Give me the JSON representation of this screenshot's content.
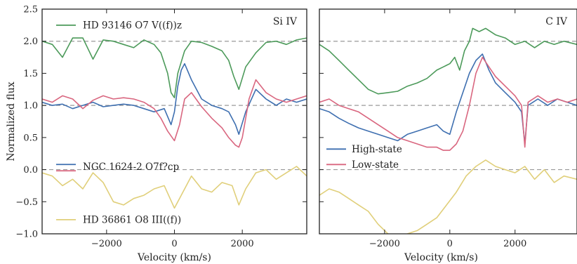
{
  "chart_data": [
    {
      "type": "line",
      "title": "Si IV",
      "xlabel": "Velocity (km/s)",
      "ylabel": "Normalized flux",
      "xlim": [
        -3900,
        3900
      ],
      "ylim": [
        -1.0,
        2.5
      ],
      "xticks": [
        -2000,
        0,
        2000
      ],
      "xtick_labels": [
        "−2000",
        "0",
        "2000"
      ],
      "yticks": [
        -1.0,
        -0.5,
        0.0,
        0.5,
        1.0,
        1.5,
        2.0,
        2.5
      ],
      "ytick_labels": [
        "−1.0",
        "−0.5",
        "0.0",
        "0.5",
        "1.0",
        "1.5",
        "2.0",
        "2.5"
      ],
      "reference_lines": [
        0.0,
        1.0,
        2.0
      ],
      "series": [
        {
          "name": "HD 93146 O7 V((f))z",
          "color": "#4c9a5a",
          "x": [
            -3900,
            -3600,
            -3300,
            -3000,
            -2700,
            -2400,
            -2100,
            -1800,
            -1500,
            -1200,
            -900,
            -600,
            -400,
            -200,
            -100,
            0,
            100,
            300,
            500,
            800,
            1100,
            1400,
            1600,
            1750,
            1900,
            2100,
            2400,
            2700,
            3000,
            3300,
            3600,
            3900
          ],
          "y": [
            2.0,
            1.95,
            1.75,
            2.05,
            2.05,
            1.72,
            2.02,
            2.0,
            1.95,
            1.9,
            2.02,
            1.95,
            1.82,
            1.5,
            1.2,
            1.12,
            1.5,
            1.85,
            2.0,
            1.98,
            1.92,
            1.85,
            1.7,
            1.45,
            1.25,
            1.6,
            1.82,
            1.98,
            2.0,
            1.95,
            2.02,
            2.05
          ]
        },
        {
          "name": "NGC 1624-2 O7f?cp",
          "color": "#3e6fb0",
          "x": [
            -3900,
            -3600,
            -3300,
            -3000,
            -2700,
            -2400,
            -2100,
            -1800,
            -1500,
            -1200,
            -900,
            -600,
            -300,
            -100,
            0,
            100,
            200,
            300,
            500,
            800,
            1100,
            1400,
            1600,
            1800,
            1900,
            2100,
            2400,
            2700,
            3000,
            3300,
            3600,
            3900
          ],
          "y": [
            1.05,
            1.0,
            1.02,
            0.95,
            1.0,
            1.05,
            0.98,
            1.0,
            1.02,
            1.0,
            0.95,
            0.9,
            0.95,
            0.7,
            0.9,
            1.3,
            1.55,
            1.65,
            1.4,
            1.1,
            1.0,
            0.95,
            0.9,
            0.7,
            0.55,
            0.9,
            1.25,
            1.1,
            1.0,
            1.1,
            1.05,
            1.1
          ]
        },
        {
          "name": "",
          "color": "#d9667f",
          "x": [
            -3900,
            -3600,
            -3300,
            -3000,
            -2700,
            -2400,
            -2100,
            -1800,
            -1500,
            -1200,
            -900,
            -600,
            -400,
            -200,
            0,
            150,
            300,
            500,
            800,
            1100,
            1400,
            1600,
            1800,
            1900,
            2000,
            2200,
            2400,
            2700,
            3000,
            3300,
            3600,
            3900
          ],
          "y": [
            1.1,
            1.05,
            1.15,
            1.1,
            0.95,
            1.08,
            1.15,
            1.1,
            1.12,
            1.1,
            1.05,
            0.95,
            0.8,
            0.6,
            0.45,
            0.7,
            1.1,
            1.2,
            0.98,
            0.8,
            0.65,
            0.5,
            0.38,
            0.35,
            0.5,
            1.1,
            1.4,
            1.2,
            1.1,
            1.05,
            1.1,
            1.15
          ]
        },
        {
          "name": "HD 36861 O8 III((f))",
          "color": "#e0cf7a",
          "x": [
            -3900,
            -3600,
            -3300,
            -3000,
            -2700,
            -2400,
            -2100,
            -1800,
            -1500,
            -1200,
            -900,
            -600,
            -300,
            0,
            200,
            500,
            800,
            1100,
            1400,
            1700,
            1900,
            2100,
            2400,
            2700,
            3000,
            3300,
            3600,
            3900
          ],
          "y": [
            -0.05,
            -0.1,
            -0.25,
            -0.15,
            -0.3,
            -0.05,
            -0.2,
            -0.5,
            -0.55,
            -0.45,
            -0.4,
            -0.3,
            -0.25,
            -0.6,
            -0.4,
            -0.1,
            -0.3,
            -0.35,
            -0.2,
            -0.25,
            -0.55,
            -0.3,
            -0.05,
            0.0,
            -0.15,
            -0.05,
            0.05,
            -0.1
          ]
        }
      ],
      "legend": [
        {
          "label": "HD 93146 O7 V((f))z",
          "color": "#4c9a5a"
        },
        {
          "label": "NGC 1624-2 O7f?cp",
          "color": "#3e6fb0",
          "color2": "#d9667f"
        },
        {
          "label": "HD 36861 O8 III((f))",
          "color": "#e0cf7a"
        }
      ]
    },
    {
      "type": "line",
      "title": "C IV",
      "xlabel": "Velocity (km/s)",
      "ylabel": "",
      "xlim": [
        -4000,
        3900
      ],
      "ylim": [
        -1.0,
        2.5
      ],
      "xticks": [
        -2000,
        0,
        2000
      ],
      "xtick_labels": [
        "−2000",
        "0",
        "2000"
      ],
      "reference_lines": [
        0.0,
        1.0,
        2.0
      ],
      "series": [
        {
          "name": "",
          "color": "#4c9a5a",
          "x": [
            -4000,
            -3700,
            -3400,
            -3100,
            -2800,
            -2500,
            -2200,
            -1900,
            -1600,
            -1300,
            -1000,
            -700,
            -400,
            -200,
            0,
            150,
            300,
            450,
            600,
            700,
            900,
            1100,
            1400,
            1700,
            2000,
            2300,
            2600,
            2900,
            3200,
            3500,
            3900
          ],
          "y": [
            1.95,
            1.85,
            1.7,
            1.55,
            1.4,
            1.25,
            1.18,
            1.2,
            1.22,
            1.3,
            1.35,
            1.42,
            1.55,
            1.6,
            1.65,
            1.75,
            1.55,
            1.85,
            2.0,
            2.2,
            2.15,
            2.2,
            2.1,
            2.05,
            1.95,
            2.0,
            1.9,
            2.0,
            1.95,
            2.0,
            1.95
          ]
        },
        {
          "name": "High-state",
          "color": "#3e6fb0",
          "x": [
            -4000,
            -3700,
            -3400,
            -3100,
            -2800,
            -2500,
            -2200,
            -1900,
            -1600,
            -1300,
            -1000,
            -700,
            -400,
            -200,
            0,
            200,
            400,
            600,
            800,
            1000,
            1200,
            1400,
            1700,
            2000,
            2200,
            2300,
            2400,
            2700,
            3000,
            3300,
            3600,
            3900
          ],
          "y": [
            0.95,
            0.9,
            0.8,
            0.72,
            0.65,
            0.6,
            0.55,
            0.5,
            0.45,
            0.55,
            0.6,
            0.65,
            0.7,
            0.6,
            0.55,
            0.9,
            1.2,
            1.5,
            1.7,
            1.8,
            1.55,
            1.35,
            1.2,
            1.05,
            0.9,
            0.4,
            1.0,
            1.1,
            1.0,
            1.1,
            1.05,
            1.0
          ]
        },
        {
          "name": "Low-state",
          "color": "#d9667f",
          "x": [
            -4000,
            -3700,
            -3400,
            -3100,
            -2800,
            -2500,
            -2200,
            -1900,
            -1600,
            -1300,
            -1000,
            -700,
            -400,
            -200,
            0,
            200,
            400,
            600,
            800,
            1000,
            1200,
            1400,
            1700,
            2000,
            2200,
            2300,
            2400,
            2700,
            3000,
            3300,
            3600,
            3900
          ],
          "y": [
            1.05,
            1.1,
            1.0,
            0.95,
            0.9,
            0.8,
            0.7,
            0.6,
            0.5,
            0.45,
            0.4,
            0.35,
            0.35,
            0.3,
            0.3,
            0.4,
            0.6,
            1.0,
            1.5,
            1.75,
            1.6,
            1.45,
            1.3,
            1.15,
            1.0,
            0.35,
            1.05,
            1.15,
            1.05,
            1.1,
            1.05,
            1.1
          ]
        },
        {
          "name": "",
          "color": "#e0cf7a",
          "x": [
            -4000,
            -3700,
            -3400,
            -3100,
            -2800,
            -2500,
            -2200,
            -1900,
            -1600,
            -1300,
            -1000,
            -700,
            -400,
            -100,
            200,
            500,
            800,
            1100,
            1400,
            1700,
            2000,
            2300,
            2600,
            2900,
            3200,
            3500,
            3900
          ],
          "y": [
            -0.4,
            -0.3,
            -0.35,
            -0.45,
            -0.55,
            -0.65,
            -0.85,
            -1.0,
            -1.05,
            -1.0,
            -0.95,
            -0.85,
            -0.75,
            -0.55,
            -0.35,
            -0.1,
            0.05,
            0.15,
            0.05,
            0.0,
            -0.05,
            0.05,
            -0.15,
            0.0,
            -0.2,
            -0.1,
            -0.15
          ]
        }
      ],
      "legend": [
        {
          "label": "High-state",
          "color": "#3e6fb0"
        },
        {
          "label": "Low-state",
          "color": "#d9667f"
        }
      ]
    }
  ]
}
